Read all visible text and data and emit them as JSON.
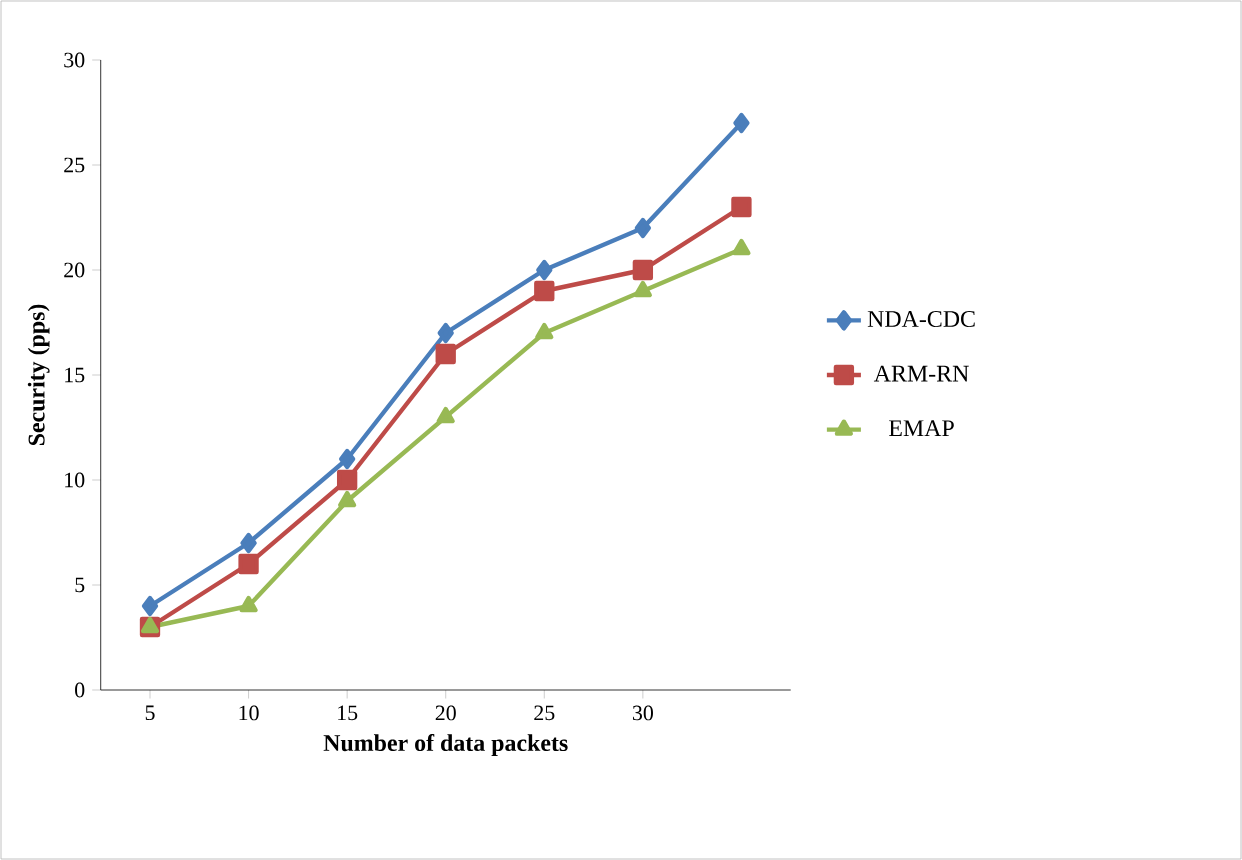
{
  "chart_data": {
    "type": "line",
    "xlabel": "Number of data packets",
    "ylabel": "Security (pps)",
    "categories": [
      "5",
      "10",
      "15",
      "20",
      "25",
      "30",
      null
    ],
    "series": [
      {
        "name": "NDA-CDC",
        "color": "#4a7ebb",
        "marker": "diamond",
        "values": [
          4,
          7,
          11,
          17,
          20,
          22,
          27
        ]
      },
      {
        "name": "ARM-RN",
        "color": "#be4b48",
        "marker": "square",
        "values": [
          3,
          6,
          10,
          16,
          19,
          20,
          23
        ]
      },
      {
        "name": "EMAP",
        "color": "#98b954",
        "marker": "triangle",
        "values": [
          3,
          4,
          9,
          13,
          17,
          19,
          21
        ]
      }
    ],
    "ylim": [
      0,
      30
    ],
    "yticks": [
      0,
      5,
      10,
      15,
      20,
      25,
      30
    ],
    "grid": false,
    "legend": "right",
    "line_style": "solid"
  }
}
